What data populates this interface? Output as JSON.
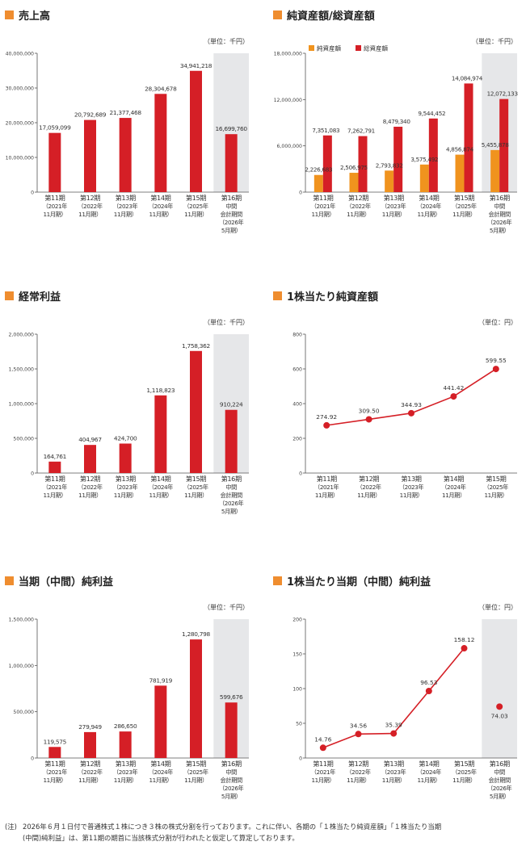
{
  "colors": {
    "accent": "#EF8D2F",
    "red": "#D51F26",
    "orange": "#F0931E",
    "shade": "#E6E7E9",
    "axis": "#555555"
  },
  "panels": {
    "sales": {
      "title": "売上高"
    },
    "assets": {
      "title": "純資産額/総資産額"
    },
    "ordinary": {
      "title": "経常利益"
    },
    "bps": {
      "title": "1株当たり純資産額"
    },
    "net": {
      "title": "当期（中間）純利益"
    },
    "eps": {
      "title": "1株当たり当期（中間）純利益"
    }
  },
  "footnote": {
    "label": "(注)",
    "line1": "2026年６月１日付で普通株式１株につき３株の株式分割を行っております。これに伴い、各期の「１株当たり純資産額」「１株当たり当期",
    "line2": "(中間)純利益」は、第11期の期首に当該株式分割が行われたと仮定して算定しております。"
  },
  "chart_data": [
    {
      "id": "sales",
      "type": "bar",
      "unit": "（単位：千円）",
      "categories": [
        [
          "第11期",
          "（2021年",
          "11月期）"
        ],
        [
          "第12期",
          "（2022年",
          "11月期）"
        ],
        [
          "第13期",
          "（2023年",
          "11月期）"
        ],
        [
          "第14期",
          "（2024年",
          "11月期）"
        ],
        [
          "第15期",
          "（2025年",
          "11月期）"
        ],
        [
          "第16期",
          "中間",
          "会計期間",
          "（2026年",
          "5月期）"
        ]
      ],
      "values": [
        17059099,
        20792689,
        21377468,
        28304678,
        34941218,
        16699760
      ],
      "labels": [
        "17,059,099",
        "20,792,689",
        "21,377,468",
        "28,304,678",
        "34,941,218",
        "16,699,760"
      ],
      "ylim": [
        0,
        40000000
      ],
      "yticks": [
        0,
        10000000,
        20000000,
        30000000,
        40000000
      ],
      "ytick_labels": [
        "0",
        "10,000,000",
        "20,000,000",
        "30,000,000",
        "40,000,000"
      ],
      "highlight_last": true
    },
    {
      "id": "assets",
      "type": "bar",
      "unit": "（単位：千円）",
      "categories": [
        [
          "第11期",
          "（2021年",
          "11月期）"
        ],
        [
          "第12期",
          "（2022年",
          "11月期）"
        ],
        [
          "第13期",
          "（2023年",
          "11月期）"
        ],
        [
          "第14期",
          "（2024年",
          "11月期）"
        ],
        [
          "第15期",
          "（2025年",
          "11月期）"
        ],
        [
          "第16期",
          "中間",
          "会計期間",
          "（2026年",
          "5月期）"
        ]
      ],
      "series": [
        {
          "name": "純資産額",
          "values": [
            2226683,
            2506975,
            2793832,
            3575492,
            4856874,
            5455878
          ],
          "labels": [
            "2,226,683",
            "2,506,975",
            "2,793,832",
            "3,575,492",
            "4,856,874",
            "5,455,878"
          ]
        },
        {
          "name": "総資産額",
          "values": [
            7351083,
            7262791,
            8479340,
            9544452,
            14084974,
            12072133
          ],
          "labels": [
            "7,351,083",
            "7,262,791",
            "8,479,340",
            "9,544,452",
            "14,084,974",
            "12,072,133"
          ]
        }
      ],
      "ylim": [
        0,
        18000000
      ],
      "yticks": [
        0,
        6000000,
        12000000,
        18000000
      ],
      "ytick_labels": [
        "0",
        "6,000,000",
        "12,000,000",
        "18,000,000"
      ],
      "legend": "top-left",
      "highlight_last": true
    },
    {
      "id": "ordinary",
      "type": "bar",
      "unit": "（単位：千円）",
      "categories": [
        [
          "第11期",
          "（2021年",
          "11月期）"
        ],
        [
          "第12期",
          "（2022年",
          "11月期）"
        ],
        [
          "第13期",
          "（2023年",
          "11月期）"
        ],
        [
          "第14期",
          "（2024年",
          "11月期）"
        ],
        [
          "第15期",
          "（2025年",
          "11月期）"
        ],
        [
          "第16期",
          "中間",
          "会計期間",
          "（2026年",
          "5月期）"
        ]
      ],
      "values": [
        164761,
        404967,
        424700,
        1118823,
        1758362,
        910224
      ],
      "labels": [
        "164,761",
        "404,967",
        "424,700",
        "1,118,823",
        "1,758,362",
        "910,224"
      ],
      "ylim": [
        0,
        2000000
      ],
      "yticks": [
        0,
        500000,
        1000000,
        1500000,
        2000000
      ],
      "ytick_labels": [
        "0",
        "500,000",
        "1,000,000",
        "1,500,000",
        "2,000,000"
      ],
      "highlight_last": true
    },
    {
      "id": "bps",
      "type": "line",
      "unit": "（単位：円）",
      "categories": [
        [
          "第11期",
          "（2021年",
          "11月期）"
        ],
        [
          "第12期",
          "（2022年",
          "11月期）"
        ],
        [
          "第13期",
          "（2023年",
          "11月期）"
        ],
        [
          "第14期",
          "（2024年",
          "11月期）"
        ],
        [
          "第15期",
          "（2025年",
          "11月期）"
        ]
      ],
      "values": [
        274.92,
        309.5,
        344.93,
        441.42,
        599.55
      ],
      "labels": [
        "274.92",
        "309.50",
        "344.93",
        "441.42",
        "599.55"
      ],
      "ylim": [
        0,
        800
      ],
      "yticks": [
        0,
        200,
        400,
        600,
        800
      ],
      "ytick_labels": [
        "0",
        "200",
        "400",
        "600",
        "800"
      ],
      "highlight_last": false
    },
    {
      "id": "net",
      "type": "bar",
      "unit": "（単位：千円）",
      "categories": [
        [
          "第11期",
          "（2021年",
          "11月期）"
        ],
        [
          "第12期",
          "（2022年",
          "11月期）"
        ],
        [
          "第13期",
          "（2023年",
          "11月期）"
        ],
        [
          "第14期",
          "（2024年",
          "11月期）"
        ],
        [
          "第15期",
          "（2025年",
          "11月期）"
        ],
        [
          "第16期",
          "中間",
          "会計期間",
          "（2026年",
          "5月期）"
        ]
      ],
      "values": [
        119575,
        279949,
        286650,
        781919,
        1280798,
        599676
      ],
      "labels": [
        "119,575",
        "279,949",
        "286,650",
        "781,919",
        "1,280,798",
        "599,676"
      ],
      "ylim": [
        0,
        1500000
      ],
      "yticks": [
        0,
        500000,
        1000000,
        1500000
      ],
      "ytick_labels": [
        "0",
        "500,000",
        "1,000,000",
        "1,500,000"
      ],
      "highlight_last": true
    },
    {
      "id": "eps",
      "type": "line",
      "unit": "（単位：円）",
      "categories": [
        [
          "第11期",
          "（2021年",
          "11月期）"
        ],
        [
          "第12期",
          "（2022年",
          "11月期）"
        ],
        [
          "第13期",
          "（2023年",
          "11月期）"
        ],
        [
          "第14期",
          "（2024年",
          "11月期）"
        ],
        [
          "第15期",
          "（2025年",
          "11月期）"
        ],
        [
          "第16期",
          "中間",
          "会計期間",
          "（2026年",
          "5月期）"
        ]
      ],
      "values": [
        14.76,
        34.56,
        35.39,
        96.53,
        158.12,
        74.03
      ],
      "labels": [
        "14.76",
        "34.56",
        "35.39",
        "96.53",
        "158.12",
        "74.03"
      ],
      "connect_until": 5,
      "ylim": [
        0,
        200
      ],
      "yticks": [
        0,
        50,
        100,
        150,
        200
      ],
      "ytick_labels": [
        "0",
        "50",
        "100",
        "150",
        "200"
      ],
      "highlight_last": true
    }
  ]
}
